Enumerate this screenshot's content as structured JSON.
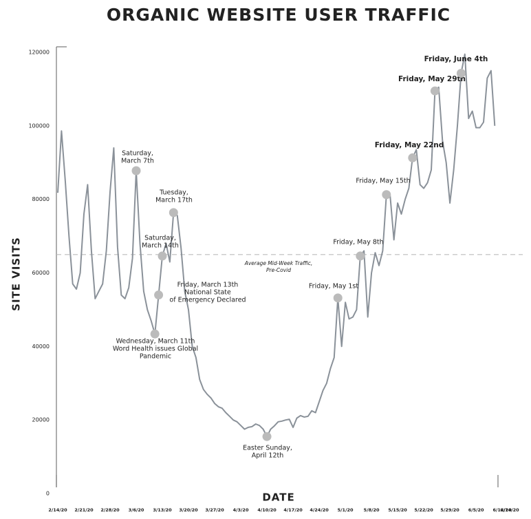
{
  "chart_data": {
    "type": "line",
    "title": "ORGANIC WEBSITE USER TRAFFIC",
    "xlabel": "DATE",
    "ylabel": "SITE VISITS",
    "categories": [
      "2/14/20",
      null,
      null,
      null,
      null,
      null,
      null,
      "2/21/20",
      null,
      null,
      null,
      null,
      null,
      null,
      "2/28/20",
      null,
      null,
      null,
      null,
      null,
      null,
      "3/6/20",
      null,
      null,
      null,
      null,
      null,
      null,
      "3/13/20",
      null,
      null,
      null,
      null,
      null,
      null,
      "3/20/20",
      null,
      null,
      null,
      null,
      null,
      null,
      "3/27/20",
      null,
      null,
      null,
      null,
      null,
      null,
      "4/3/20",
      null,
      null,
      null,
      null,
      null,
      null,
      "4/10/20",
      null,
      null,
      null,
      null,
      null,
      null,
      "4/17/20",
      null,
      null,
      null,
      null,
      null,
      null,
      "4/24/20",
      null,
      null,
      null,
      null,
      null,
      null,
      "5/1/20",
      null,
      null,
      null,
      null,
      null,
      null,
      "5/8/20",
      null,
      null,
      null,
      null,
      null,
      null,
      "5/15/20",
      null,
      null,
      null,
      null,
      null,
      null,
      "5/22/20",
      null,
      null,
      null,
      null,
      null,
      null,
      "5/29/20",
      null,
      null,
      null,
      null,
      null,
      null,
      "6/5/20",
      null,
      null,
      null,
      null,
      null,
      null,
      "6/12/20",
      null,
      "6/14/20"
    ],
    "series": [
      {
        "name": "Site Visits",
        "color": "#8a9199",
        "values": [
          81800,
          98600,
          85000,
          70000,
          57000,
          55600,
          60000,
          76000,
          84000,
          66000,
          53000,
          55000,
          57000,
          66000,
          82000,
          94000,
          67000,
          54000,
          53000,
          56000,
          64000,
          87800,
          68000,
          55000,
          50000,
          47000,
          43400,
          54000,
          64600,
          68000,
          63000,
          76400,
          75600,
          66800,
          55000,
          50000,
          40000,
          37000,
          31000,
          28300,
          27000,
          26000,
          24500,
          23600,
          23200,
          22000,
          21000,
          20000,
          19500,
          18500,
          17500,
          18000,
          18200,
          18900,
          18500,
          17500,
          15500,
          17500,
          18400,
          19500,
          19700,
          20000,
          20200,
          18000,
          20500,
          21200,
          20800,
          21000,
          22500,
          22000,
          25000,
          28000,
          30000,
          34000,
          37000,
          53200,
          40000,
          52000,
          47500,
          48000,
          50000,
          64600,
          66000,
          48000,
          60000,
          65500,
          62000,
          66000,
          81300,
          81000,
          69000,
          79000,
          76000,
          80000,
          83000,
          91300,
          93500,
          84000,
          83000,
          84500,
          88000,
          109500,
          110500,
          96000,
          90000,
          79000,
          88000,
          100000,
          114300,
          119500,
          102000,
          104000,
          99500,
          99500,
          101000,
          113000,
          115000,
          100000,
          null,
          null,
          null,
          null
        ]
      }
    ],
    "ylim": [
      0,
      120000
    ],
    "yticks": [
      0,
      20000,
      40000,
      60000,
      80000,
      100000,
      120000
    ],
    "marker_color": "#bbbbbb",
    "reference_line": {
      "value": 65000,
      "color": "#bbbbbb",
      "label": [
        "Average Mid-Week Traffic,",
        "Pre-Covid"
      ]
    },
    "annotations": [
      {
        "lines": [
          "Saturday,",
          "March 7th"
        ]
      },
      {
        "lines": [
          "Wednesday, March 11th",
          "Word Health issues Global",
          "Pandemic"
        ]
      },
      {
        "lines": [
          "Friday, March 13th",
          "National State",
          "of Emergency Declared"
        ]
      },
      {
        "lines": [
          "Saturday,",
          "March 14th"
        ]
      },
      {
        "lines": [
          "Tuesday,",
          "March 17th"
        ]
      },
      {
        "lines": [
          "Easter Sunday,",
          "April 12th"
        ]
      },
      {
        "lines": [
          "Friday, May 1st"
        ]
      },
      {
        "lines": [
          "Friday, May 8th"
        ]
      },
      {
        "lines": [
          "Friday, May 15th"
        ]
      },
      {
        "lines": [
          "Friday, May 22nd"
        ]
      },
      {
        "lines": [
          "Friday, May 29th"
        ]
      },
      {
        "lines": [
          "Friday, June 4th"
        ]
      }
    ]
  }
}
